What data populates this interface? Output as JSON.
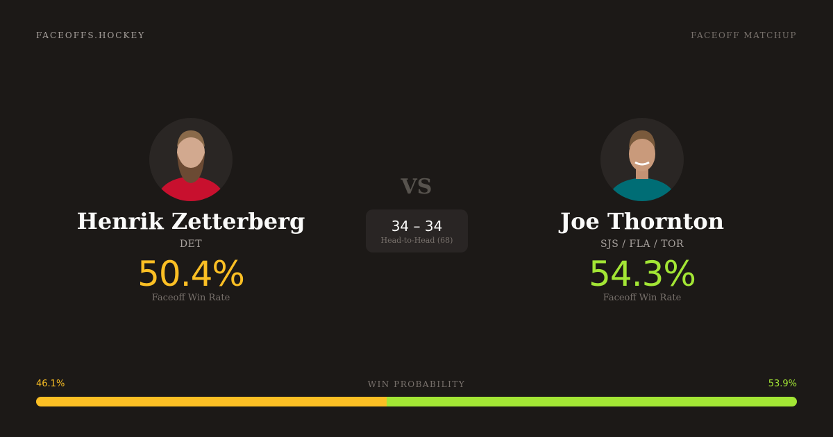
{
  "header": {
    "brand": "FACEOFFS.HOCKEY",
    "tag": "FACEOFF MATCHUP"
  },
  "colors": {
    "player1": "#fbbf24",
    "player2": "#a3e635",
    "background": "#1c1917"
  },
  "player1": {
    "name": "Henrik Zetterberg",
    "team": "DET",
    "rate": "50.4%",
    "rate_label": "Faceoff Win Rate",
    "jersey_color": "#c8102e"
  },
  "player2": {
    "name": "Joe Thornton",
    "team": "SJS / FLA / TOR",
    "rate": "54.3%",
    "rate_label": "Faceoff Win Rate",
    "jersey_color": "#006d75"
  },
  "vs": "VS",
  "head_to_head": {
    "score": "34 – 34",
    "label": "Head-to-Head (68)"
  },
  "win_probability": {
    "title": "WIN PROBABILITY",
    "player1_label": "46.1%",
    "player2_label": "53.9%",
    "player1_value": 46.1,
    "player2_value": 53.9
  }
}
